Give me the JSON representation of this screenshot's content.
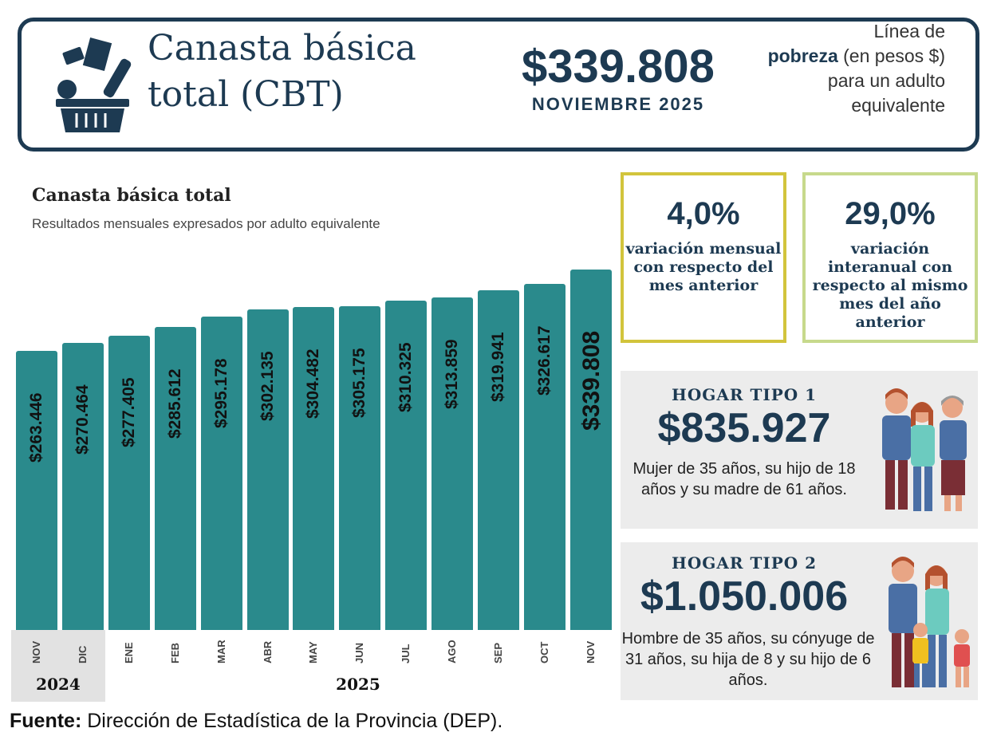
{
  "header": {
    "title_line1": "Canasta básica",
    "title_line2": "total (CBT)",
    "amount": "$339.808",
    "period": "NOVIEMBRE 2025",
    "desc_pre": "Línea de",
    "desc_bold": "pobreza",
    "desc_post": "(en pesos $) para un adulto equivalente",
    "icon": "shopping-basket-icon"
  },
  "stats": [
    {
      "value": "4,0%",
      "text": "variación mensual con respecto del mes anterior",
      "border": "#d2c43c"
    },
    {
      "value": "29,0%",
      "text": "variación interanual con respecto al mismo mes del año anterior",
      "border": "#c7d98c"
    }
  ],
  "hogares": [
    {
      "title": "HOGAR TIPO 1",
      "value": "$835.927",
      "desc": "Mujer de 35 años, su hijo de 18 años y su madre de 61 años."
    },
    {
      "title": "HOGAR TIPO 2",
      "value": "$1.050.006",
      "desc": "Hombre de 35 años, su cónyuge de 31 años, su hija de 8 y su hijo de 6 años."
    }
  ],
  "chart_data": {
    "type": "bar",
    "title": "Canasta básica total",
    "subtitle": "Resultados mensuales expresados por adulto equivalente",
    "categories": [
      "NOV",
      "DIC",
      "ENE",
      "FEB",
      "MAR",
      "ABR",
      "MAY",
      "JUN",
      "JUL",
      "AGO",
      "SEP",
      "OCT",
      "NOV"
    ],
    "values": [
      263446,
      270464,
      277405,
      285612,
      295178,
      302135,
      304482,
      305175,
      310325,
      313859,
      319941,
      326617,
      339808
    ],
    "labels": [
      "$263.446",
      "$270.464",
      "$277.405",
      "$285.612",
      "$295.178",
      "$302.135",
      "$304.482",
      "$305.175",
      "$310.325",
      "$313.859",
      "$319.941",
      "$326.617",
      "$339.808"
    ],
    "year_groups": [
      {
        "label": "2024",
        "months": 2
      },
      {
        "label": "2025",
        "months": 11
      }
    ],
    "ylim": [
      0,
      339808
    ],
    "bar_color": "#2a8a8c",
    "grid": false
  },
  "source": {
    "bold": "Fuente:",
    "text": "Dirección de Estadística de la Provincia (DEP)."
  },
  "colors": {
    "navy": "#1d3a52",
    "teal": "#2a8a8c",
    "panel": "#ececec"
  }
}
